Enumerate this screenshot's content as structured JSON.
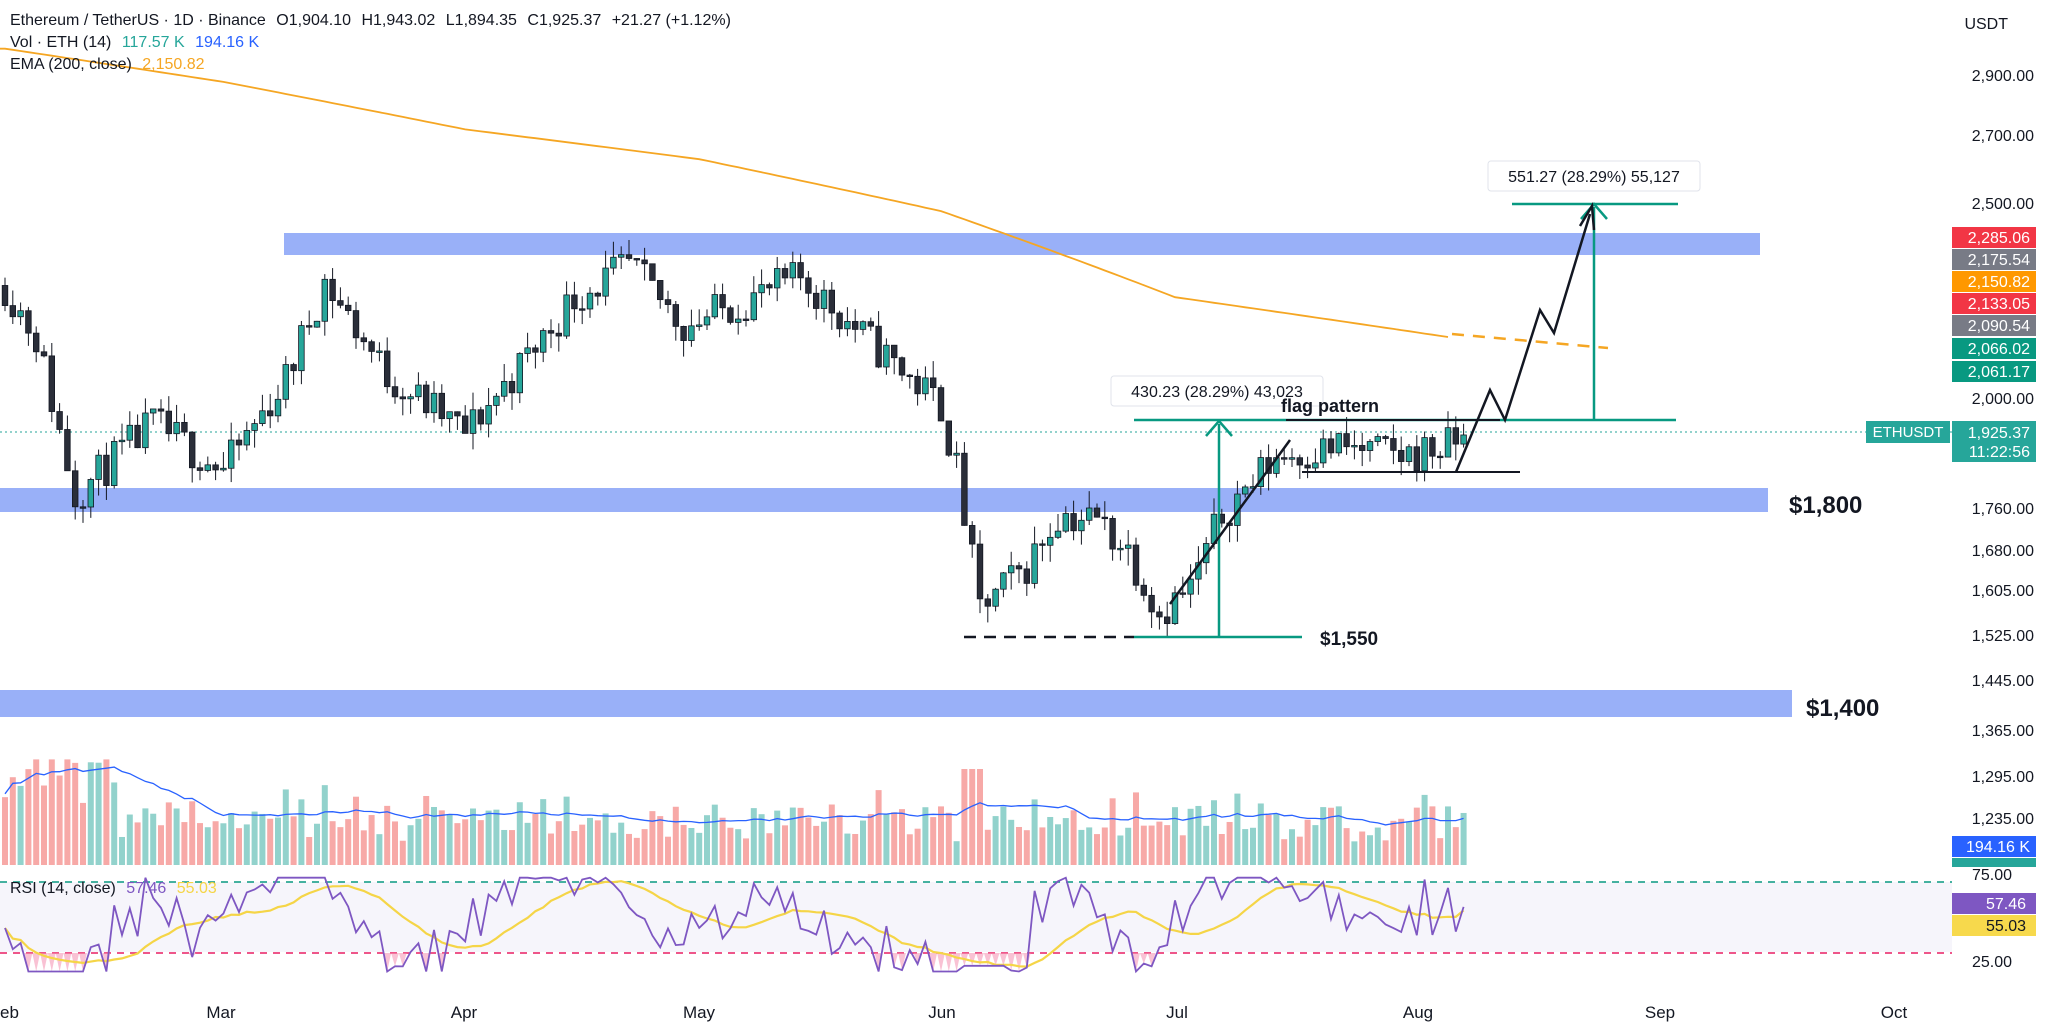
{
  "header": {
    "symbol": "Ethereum / TetherUS · 1D · Binance",
    "open": "O1,904.10",
    "high": "H1,943.02",
    "low": "L1,894.35",
    "close": "C1,925.37",
    "change": "+21.27 (+1.12%)"
  },
  "volume_legend": {
    "label": "Vol · ETH (14)",
    "v1": "117.57 K",
    "v2": "194.16 K"
  },
  "ema_legend": {
    "label": "EMA (200, close)",
    "value": "2,150.82"
  },
  "rsi_legend": {
    "label": "RSI (14, close)",
    "v1": "57.46",
    "v2": "55.03"
  },
  "price_axis": {
    "currency": "USDT",
    "ticks": [
      "2,900.00",
      "2,700.00",
      "2,500.00",
      "2,000.00",
      "1,760.00",
      "1,680.00",
      "1,605.00",
      "1,525.00",
      "1,445.00",
      "1,365.00",
      "1,295.00",
      "1,235.00"
    ],
    "rsi_ticks": [
      "75.00",
      "25.00"
    ]
  },
  "time_axis": {
    "labels": [
      "eb",
      "Mar",
      "Apr",
      "May",
      "Jun",
      "Jul",
      "Aug",
      "Sep",
      "Oct"
    ]
  },
  "price_tags": [
    {
      "text": "2,285.06",
      "color": "#f23645"
    },
    {
      "text": "2,175.54",
      "color": "#787b86"
    },
    {
      "text": "2,150.82",
      "color": "#ff9800"
    },
    {
      "text": "2,133.05",
      "color": "#f23645"
    },
    {
      "text": "2,090.54",
      "color": "#787b86"
    },
    {
      "text": "2,066.02",
      "color": "#089981"
    },
    {
      "text": "2,061.17",
      "color": "#089981"
    },
    {
      "text": "1,925.37",
      "color": "#26a69a"
    },
    {
      "text": "11:22:56",
      "color": "#26a69a"
    },
    {
      "text": "194.16 K",
      "color": "#2962ff"
    },
    {
      "text": "57.46",
      "color": "#7e57c2"
    },
    {
      "text": "55.03",
      "color": "#f7d94c"
    }
  ],
  "symbol_tag": "ETHUSDT",
  "annotations": {
    "level_1800": "$1,800",
    "level_1550": "$1,550",
    "level_1400": "$1,400",
    "flag_pattern": "flag pattern",
    "measure_small": "430.23 (28.29%) 43,023",
    "measure_large": "551.27 (28.29%) 55,127"
  },
  "colors": {
    "up": "#26a69a",
    "down": "#ef5350",
    "ema": "#f5a623",
    "zone": "#6d8ff5",
    "volume_ma": "#2962ff",
    "rsi": "#7e57c2",
    "rsi_ma": "#f5d547",
    "target": "#089981"
  },
  "chart_data": {
    "type": "candlestick",
    "title": "Ethereum / TetherUS · 1D · Binance",
    "y_scale": "log",
    "ylim": [
      1240,
      3000
    ],
    "x_months": [
      "Feb",
      "Mar",
      "Apr",
      "May",
      "Jun",
      "Jul",
      "Aug",
      "Sep",
      "Oct"
    ],
    "anchors": [
      {
        "date": "Feb 1",
        "price": 2280
      },
      {
        "date": "Feb 5",
        "price": 2150
      },
      {
        "date": "Feb 10",
        "price": 1800
      },
      {
        "date": "Feb 20",
        "price": 1950
      },
      {
        "date": "Mar 1",
        "price": 1850
      },
      {
        "date": "Mar 9",
        "price": 2050
      },
      {
        "date": "Mar 14",
        "price": 2290
      },
      {
        "date": "Mar 22",
        "price": 2060
      },
      {
        "date": "Apr 1",
        "price": 1930
      },
      {
        "date": "Apr 8",
        "price": 2080
      },
      {
        "date": "Apr 15",
        "price": 2250
      },
      {
        "date": "Apr 22",
        "price": 2330
      },
      {
        "date": "Apr 29",
        "price": 2180
      },
      {
        "date": "May 8",
        "price": 2250
      },
      {
        "date": "May 14",
        "price": 2300
      },
      {
        "date": "May 24",
        "price": 2120
      },
      {
        "date": "Jun 1",
        "price": 1990
      },
      {
        "date": "Jun 3",
        "price": 1850
      },
      {
        "date": "Jun 6",
        "price": 1580
      },
      {
        "date": "Jun 12",
        "price": 1660
      },
      {
        "date": "Jun 16",
        "price": 1760
      },
      {
        "date": "Jun 21",
        "price": 1750
      },
      {
        "date": "Jun 25",
        "price": 1690
      },
      {
        "date": "Jun 29",
        "price": 1575
      },
      {
        "date": "Jul 3",
        "price": 1620
      },
      {
        "date": "Jul 7",
        "price": 1760
      },
      {
        "date": "Jul 14",
        "price": 1880
      },
      {
        "date": "Jul 22",
        "price": 1900
      },
      {
        "date": "Jul 30",
        "price": 1880
      },
      {
        "date": "Aug 5",
        "price": 1900
      },
      {
        "date": "Aug 7",
        "price": 1925.37
      }
    ],
    "ema_200": [
      {
        "date": "Feb 1",
        "value": 2980
      },
      {
        "date": "Mar 1",
        "value": 2870
      },
      {
        "date": "Apr 1",
        "value": 2720
      },
      {
        "date": "May 1",
        "value": 2630
      },
      {
        "date": "Jun 1",
        "value": 2480
      },
      {
        "date": "Jul 1",
        "value": 2250
      },
      {
        "date": "Aug 5",
        "value": 2150.82
      }
    ],
    "zones": [
      {
        "from": 2280,
        "to": 2340
      },
      {
        "from": 1760,
        "to": 1800,
        "label": "$1,800"
      },
      {
        "from": 1395,
        "to": 1440,
        "label": "$1,400"
      }
    ],
    "levels": [
      {
        "price": 1550,
        "label": "$1,550"
      },
      {
        "price": 1905,
        "label": "flag pattern"
      }
    ],
    "measures": [
      {
        "from": 1520,
        "to": 1950,
        "change": "430.23 (28.29%) 43,023"
      },
      {
        "from": 1950,
        "to": 2500,
        "change": "551.27 (28.29%) 55,127"
      }
    ],
    "volume_panel": {
      "legend": "Vol · ETH (14)",
      "last": "194.16 K"
    },
    "rsi_panel": {
      "legend": "RSI (14, close)",
      "rsi": 57.46,
      "rsi_ma": 55.03,
      "levels": [
        75,
        25
      ]
    },
    "grid": false,
    "legend_position": "top-left"
  }
}
